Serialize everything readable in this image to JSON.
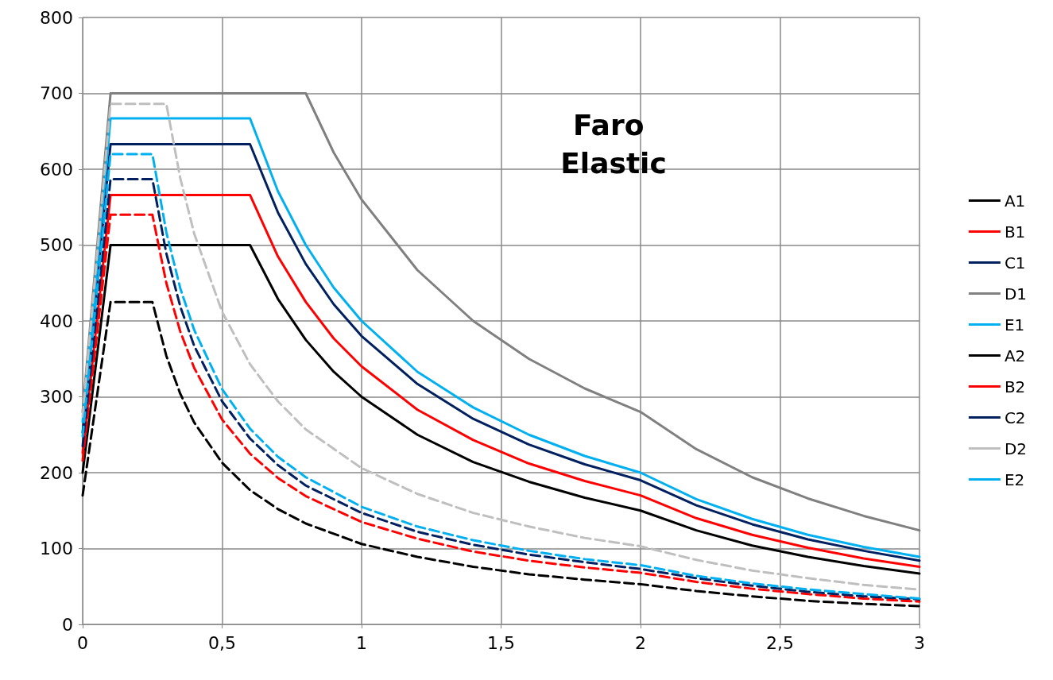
{
  "chart_data": {
    "type": "line",
    "title": "Faro Elastic",
    "xlim": [
      0,
      3
    ],
    "xticks": [
      0,
      {
        "value": 0.5,
        "label": "0,5"
      },
      1,
      {
        "value": 1.5,
        "label": "1,5"
      },
      2,
      {
        "value": 2.5,
        "label": "2,5"
      },
      3
    ],
    "ylim": [
      0,
      800
    ],
    "yticks": [
      0,
      100,
      200,
      300,
      400,
      500,
      600,
      700,
      800
    ],
    "grid": true,
    "legend": "right",
    "marker": "none",
    "series": [
      {
        "name": "A1",
        "color": "#000000",
        "line_style": "solid",
        "x": [
          0,
          0.1,
          0.6,
          0.7,
          0.8,
          0.9,
          1,
          1.2,
          1.4,
          1.6,
          1.8,
          2,
          2.2,
          2.4,
          2.6,
          2.8,
          3
        ],
        "values": [
          200,
          500,
          500,
          429,
          375,
          333,
          300,
          250,
          214,
          188,
          167,
          150,
          124,
          104,
          89,
          77,
          67
        ]
      },
      {
        "name": "B1",
        "color": "#ff0000",
        "line_style": "solid",
        "x": [
          0,
          0.1,
          0.6,
          0.7,
          0.8,
          0.9,
          1,
          1.2,
          1.4,
          1.6,
          1.8,
          2,
          2.2,
          2.4,
          2.6,
          2.8,
          3
        ],
        "values": [
          226,
          566,
          566,
          485,
          425,
          377,
          340,
          283,
          243,
          212,
          189,
          170,
          140,
          118,
          101,
          87,
          76
        ]
      },
      {
        "name": "C1",
        "color": "#002060",
        "line_style": "solid",
        "x": [
          0,
          0.1,
          0.6,
          0.7,
          0.8,
          0.9,
          1,
          1.2,
          1.4,
          1.6,
          1.8,
          2,
          2.2,
          2.4,
          2.6,
          2.8,
          3
        ],
        "values": [
          253,
          633,
          633,
          543,
          475,
          422,
          380,
          317,
          271,
          237,
          211,
          190,
          157,
          132,
          112,
          97,
          84
        ]
      },
      {
        "name": "D1",
        "color": "#808080",
        "line_style": "solid",
        "x": [
          0,
          0.1,
          0.8,
          0.9,
          1,
          1.2,
          1.4,
          1.6,
          1.8,
          2,
          2.2,
          2.4,
          2.6,
          2.8,
          3
        ],
        "values": [
          280,
          700,
          700,
          622,
          560,
          467,
          400,
          350,
          311,
          280,
          231,
          194,
          166,
          143,
          124
        ]
      },
      {
        "name": "E1",
        "color": "#00b0f0",
        "line_style": "solid",
        "x": [
          0,
          0.1,
          0.6,
          0.7,
          0.8,
          0.9,
          1,
          1.2,
          1.4,
          1.6,
          1.8,
          2,
          2.2,
          2.4,
          2.6,
          2.8,
          3
        ],
        "values": [
          267,
          667,
          667,
          571,
          500,
          444,
          400,
          333,
          286,
          250,
          222,
          200,
          165,
          139,
          118,
          102,
          89
        ]
      },
      {
        "name": "A2",
        "color": "#000000",
        "line_style": "dashed",
        "x": [
          0,
          0.1,
          0.25,
          0.3,
          0.35,
          0.4,
          0.5,
          0.6,
          0.7,
          0.8,
          1,
          1.2,
          1.4,
          1.6,
          1.8,
          2,
          2.2,
          2.4,
          2.6,
          2.8,
          3
        ],
        "values": [
          170,
          425,
          425,
          354,
          304,
          266,
          213,
          177,
          152,
          133,
          106,
          89,
          76,
          66,
          59,
          53,
          44,
          37,
          31,
          27,
          24
        ]
      },
      {
        "name": "B2",
        "color": "#ff0000",
        "line_style": "dashed",
        "x": [
          0,
          0.1,
          0.25,
          0.3,
          0.35,
          0.4,
          0.5,
          0.6,
          0.7,
          0.8,
          1,
          1.2,
          1.4,
          1.6,
          1.8,
          2,
          2.2,
          2.4,
          2.6,
          2.8,
          3
        ],
        "values": [
          216,
          540,
          540,
          450,
          386,
          338,
          270,
          225,
          193,
          169,
          135,
          113,
          96,
          84,
          75,
          68,
          56,
          47,
          40,
          34,
          30
        ]
      },
      {
        "name": "C2",
        "color": "#002060",
        "line_style": "dashed",
        "x": [
          0,
          0.1,
          0.25,
          0.3,
          0.35,
          0.4,
          0.5,
          0.6,
          0.7,
          0.8,
          1,
          1.2,
          1.4,
          1.6,
          1.8,
          2,
          2.2,
          2.4,
          2.6,
          2.8,
          3
        ],
        "values": [
          235,
          587,
          587,
          489,
          419,
          367,
          294,
          245,
          210,
          183,
          147,
          122,
          105,
          92,
          82,
          73,
          61,
          51,
          43,
          37,
          33
        ]
      },
      {
        "name": "D2",
        "color": "#bfbfbf",
        "line_style": "dashed",
        "x": [
          0,
          0.1,
          0.3,
          0.35,
          0.4,
          0.5,
          0.6,
          0.7,
          0.8,
          1,
          1.2,
          1.4,
          1.6,
          1.8,
          2,
          2.2,
          2.4,
          2.6,
          2.8,
          3
        ],
        "values": [
          274,
          686,
          686,
          588,
          515,
          412,
          343,
          294,
          257,
          206,
          172,
          147,
          129,
          114,
          103,
          85,
          71,
          61,
          52,
          46
        ]
      },
      {
        "name": "E2",
        "color": "#00b0f0",
        "line_style": "dashed",
        "x": [
          0,
          0.1,
          0.25,
          0.3,
          0.35,
          0.4,
          0.5,
          0.6,
          0.7,
          0.8,
          1,
          1.2,
          1.4,
          1.6,
          1.8,
          2,
          2.2,
          2.4,
          2.6,
          2.8,
          3
        ],
        "values": [
          248,
          620,
          620,
          517,
          443,
          388,
          310,
          258,
          221,
          194,
          155,
          129,
          111,
          97,
          86,
          78,
          64,
          54,
          46,
          40,
          34
        ]
      }
    ]
  }
}
